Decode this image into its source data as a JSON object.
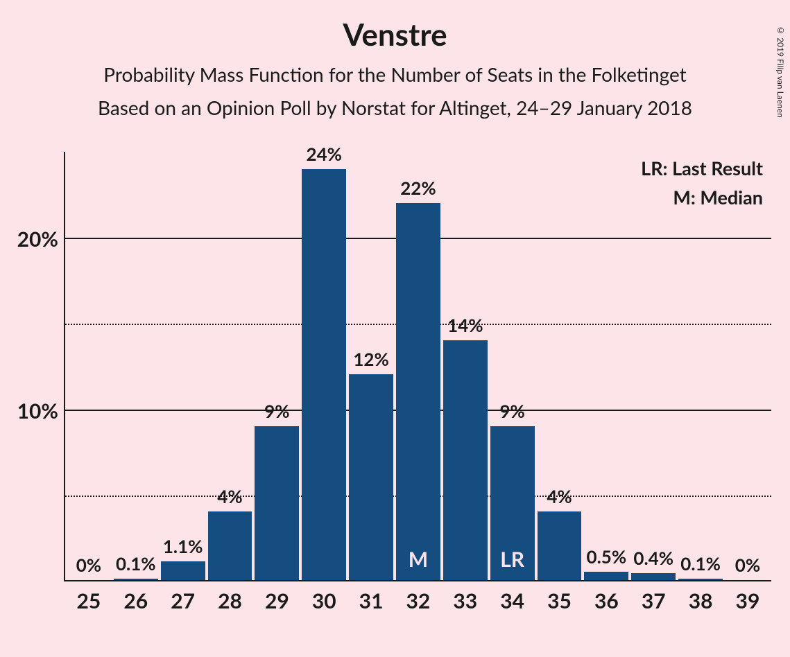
{
  "title": "Venstre",
  "subtitle1": "Probability Mass Function for the Number of Seats in the Folketinget",
  "subtitle2": "Based on an Opinion Poll by Norstat for Altinget, 24–29 January 2018",
  "copyright": "© 2019 Filip van Laenen",
  "chart": {
    "type": "bar",
    "background_color": "#fce4e8",
    "bar_color": "#154d80",
    "text_color": "#1a1a1a",
    "marker_text_color": "#fce4e8",
    "axis_color": "#1a1a1a",
    "title_fontsize": 44,
    "subtitle_fontsize": 28,
    "axislabel_fontsize": 30,
    "barlabel_fontsize": 26,
    "ylim": [
      0,
      25
    ],
    "y_major_ticks": [
      10,
      20
    ],
    "y_minor_ticks": [
      5,
      15
    ],
    "y_tick_labels": {
      "10": "10%",
      "20": "20%"
    },
    "categories": [
      25,
      26,
      27,
      28,
      29,
      30,
      31,
      32,
      33,
      34,
      35,
      36,
      37,
      38,
      39
    ],
    "values": [
      0,
      0.1,
      1.1,
      4,
      9,
      24,
      12,
      22,
      14,
      9,
      4,
      0.5,
      0.4,
      0.1,
      0
    ],
    "bar_labels": [
      "0%",
      "0.1%",
      "1.1%",
      "4%",
      "9%",
      "24%",
      "12%",
      "22%",
      "14%",
      "9%",
      "4%",
      "0.5%",
      "0.4%",
      "0.1%",
      "0%"
    ],
    "markers": {
      "32": "M",
      "34": "LR"
    },
    "bar_width": 0.94
  },
  "legend": {
    "lr": "LR: Last Result",
    "m": "M: Median"
  }
}
